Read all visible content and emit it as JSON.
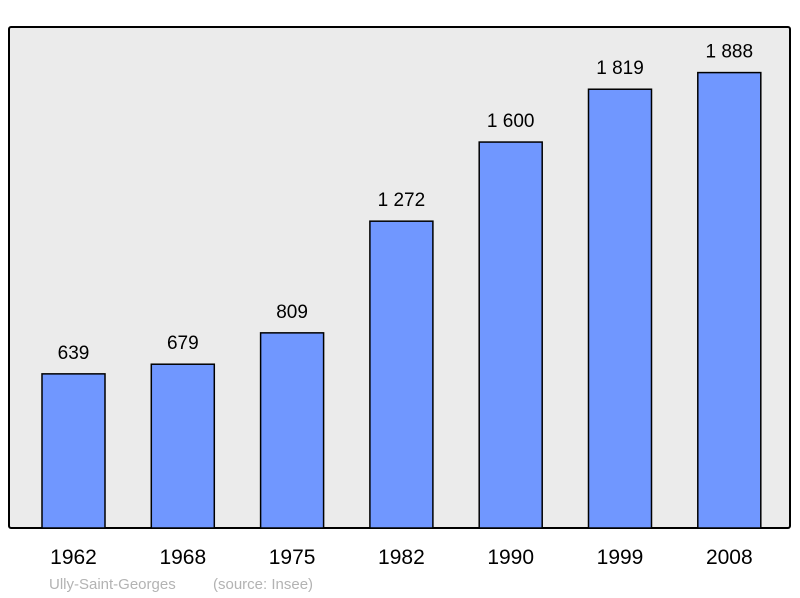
{
  "chart_data": {
    "type": "bar",
    "categories": [
      "1962",
      "1968",
      "1975",
      "1982",
      "1990",
      "1999",
      "2008"
    ],
    "values": [
      639,
      679,
      809,
      1272,
      1600,
      1819,
      1888
    ],
    "value_labels": [
      "639",
      "679",
      "809",
      "1 272",
      "1 600",
      "1 819",
      "1 888"
    ],
    "title": "",
    "xlabel": "",
    "ylabel": "",
    "ylim": [
      0,
      2077
    ],
    "grid": false,
    "colors": {
      "bar": "#7097ff",
      "plot_background": "#ebebeb",
      "border": "#000000",
      "footer": "#b3b3b3"
    }
  },
  "footer": {
    "place": "Ully-Saint-Georges",
    "source": "(source: Insee)"
  }
}
